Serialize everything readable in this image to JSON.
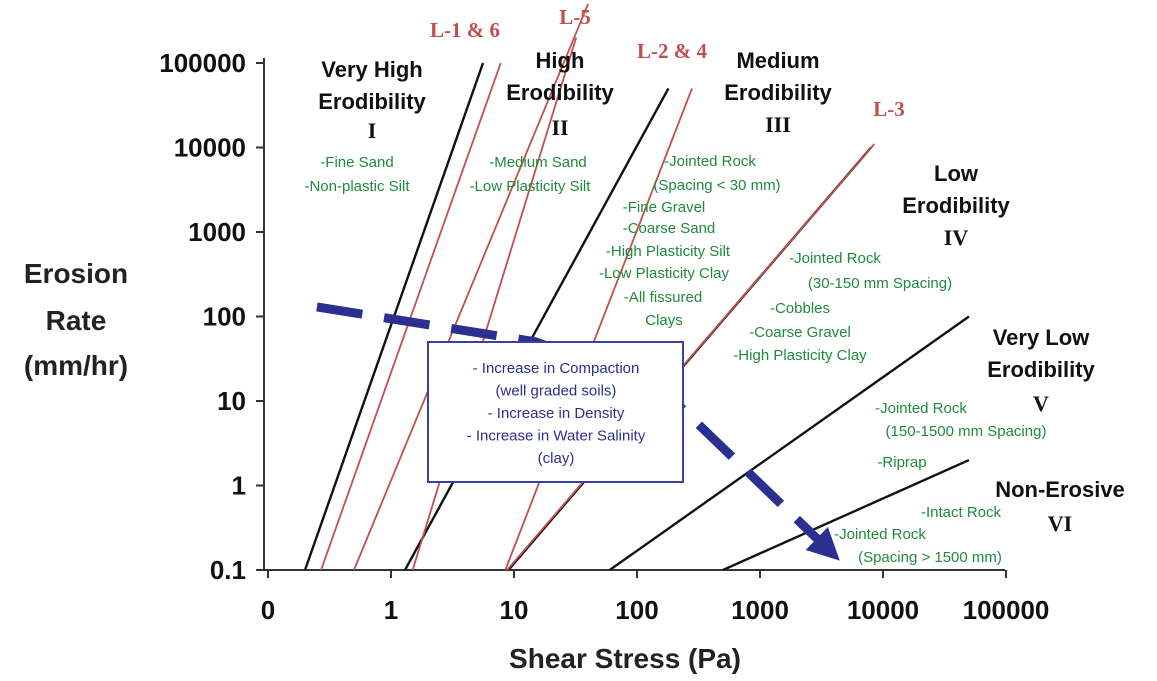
{
  "chart_data": {
    "type": "line",
    "xlabel": "Shear Stress (Pa)",
    "ylabel_lines": [
      "Erosion",
      "Rate",
      "(mm/hr)"
    ],
    "x_scale": "log",
    "y_scale": "log",
    "x_ticks": [
      "0",
      "1",
      "10",
      "100",
      "1000",
      "10000",
      "100000"
    ],
    "y_ticks": [
      "0.1",
      "1",
      "10",
      "100",
      "1000",
      "10000",
      "100000"
    ],
    "xlim": [
      0.1,
      100000
    ],
    "ylim": [
      0.1,
      100000
    ],
    "boundary_lines": [
      {
        "points": [
          [
            0.2,
            0.1
          ],
          [
            5.6,
            100000
          ]
        ]
      },
      {
        "points": [
          [
            1.3,
            0.1
          ],
          [
            180,
            50000
          ]
        ]
      },
      {
        "points": [
          [
            9,
            0.1
          ],
          [
            8000,
            10000
          ]
        ]
      },
      {
        "points": [
          [
            60,
            0.1
          ],
          [
            50000,
            100
          ]
        ]
      },
      {
        "points": [
          [
            500,
            0.1
          ],
          [
            50000,
            2
          ]
        ]
      }
    ],
    "red_lines": [
      {
        "name": "L-1 & 6",
        "points": [
          [
            0.27,
            0.1
          ],
          [
            7.8,
            100000
          ]
        ]
      },
      {
        "name": "L-5",
        "points": [
          [
            0.5,
            0.1
          ],
          [
            40,
            500000
          ]
        ]
      },
      {
        "name": "L-5",
        "points": [
          [
            1.5,
            0.1
          ],
          [
            32,
            200000
          ]
        ]
      },
      {
        "name": "L-2 & 4",
        "points": [
          [
            8.5,
            0.1
          ],
          [
            280,
            50000
          ]
        ]
      },
      {
        "name": "L-3",
        "points": [
          [
            8.8,
            0.1
          ],
          [
            8500,
            11000
          ]
        ]
      }
    ],
    "red_labels": [
      "L-1 & 6",
      "L-5",
      "L-2 & 4",
      "L-3"
    ],
    "zones": [
      {
        "title": [
          "Very High",
          "Erodibility"
        ],
        "numeral": "I",
        "materials": [
          "-Fine Sand",
          "-Non-plastic Silt"
        ]
      },
      {
        "title": [
          "High",
          "Erodibility"
        ],
        "numeral": "II",
        "materials": [
          "-Medium Sand",
          "-Low Plasticity Silt"
        ]
      },
      {
        "title": [
          "Medium",
          "Erodibility"
        ],
        "numeral": "III",
        "materials": [
          "-Jointed Rock",
          "(Spacing < 30 mm)",
          "-Fine Gravel",
          "-Coarse Sand",
          "-High Plasticity Silt",
          "-Low Plasticity Clay",
          "-All fissured",
          "Clays"
        ]
      },
      {
        "title": [
          "Low",
          "Erodibility"
        ],
        "numeral": "IV",
        "materials": [
          "-Jointed Rock",
          "(30-150 mm Spacing)",
          "-Cobbles",
          "-Coarse Gravel",
          "-High Plasticity Clay"
        ]
      },
      {
        "title": [
          "Very Low",
          "Erodibility"
        ],
        "numeral": "V",
        "materials": [
          "-Jointed Rock",
          "(150-1500 mm Spacing)",
          "-Riprap"
        ]
      },
      {
        "title": [
          "Non-Erosive"
        ],
        "numeral": "VI",
        "materials": [
          "-Intact Rock",
          "-Jointed Rock",
          "(Spacing > 1500 mm)"
        ]
      }
    ],
    "trend_arrow": {
      "points": [
        [
          0.25,
          130
        ],
        [
          15,
          50
        ],
        [
          150,
          15
        ],
        [
          4000,
          0.15
        ]
      ]
    },
    "annotation_box": [
      "- Increase in Compaction",
      "(well graded soils)",
      "- Increase in Density",
      "- Increase in Water Salinity",
      "(clay)"
    ],
    "colors": {
      "boundary": "#111111",
      "red": "#c0504d",
      "material": "#1e8a3c",
      "arrow": "#2b2f8f",
      "box": "#3b3fa0"
    }
  }
}
